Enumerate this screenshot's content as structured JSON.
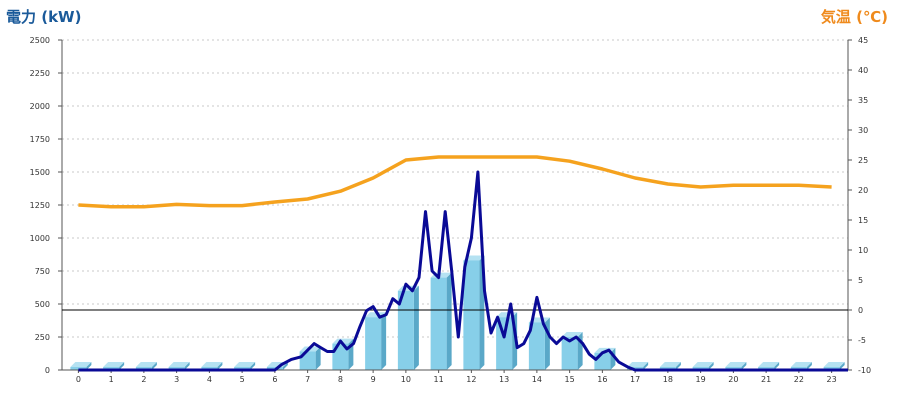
{
  "chart_data": {
    "type": "bar",
    "left_axis_label": "電力 (kW)",
    "right_axis_label": "気温 (℃)",
    "y_left_range": [
      0,
      2500
    ],
    "y_left_ticks": [
      0,
      250,
      500,
      750,
      1000,
      1250,
      1500,
      1750,
      2000,
      2250,
      2500
    ],
    "y_right_range": [
      -10,
      45
    ],
    "y_right_ticks": [
      -10,
      -5,
      0,
      5,
      10,
      15,
      20,
      25,
      30,
      35,
      40,
      45
    ],
    "x_ticks": [
      "0",
      "1",
      "2",
      "3",
      "4",
      "5",
      "6",
      "7",
      "8",
      "9",
      "10",
      "11",
      "12",
      "13",
      "14",
      "15",
      "16",
      "17",
      "18",
      "19",
      "20",
      "21",
      "22",
      "23"
    ],
    "grid": true,
    "zero_line_temp": 0,
    "colors": {
      "bar_front": "#87cfe9",
      "bar_side": "#5aa8c8",
      "bar_top": "#b5e2f2",
      "power_line": "#0a0a96",
      "temperature_line": "#f5a21e",
      "left_title": "#1a5a9a",
      "right_title": "#ef8a1c"
    },
    "bars_hourly_power_kw": [
      0,
      0,
      0,
      0,
      0,
      0,
      20,
      140,
      200,
      400,
      600,
      700,
      830,
      400,
      360,
      250,
      130,
      10,
      0,
      0,
      0,
      0,
      0,
      0
    ],
    "power_line_kw": {
      "x": [
        0,
        6,
        6.2,
        6.5,
        6.8,
        7.0,
        7.2,
        7.4,
        7.6,
        7.8,
        8.0,
        8.2,
        8.4,
        8.6,
        8.8,
        9.0,
        9.2,
        9.4,
        9.6,
        9.8,
        10.0,
        10.2,
        10.4,
        10.6,
        10.8,
        11.0,
        11.2,
        11.4,
        11.6,
        11.8,
        12.0,
        12.2,
        12.4,
        12.6,
        12.8,
        13.0,
        13.2,
        13.4,
        13.6,
        13.8,
        14.0,
        14.2,
        14.4,
        14.6,
        14.8,
        15.0,
        15.2,
        15.4,
        15.6,
        15.8,
        16.0,
        16.2,
        16.5,
        16.8,
        17.0,
        23.5
      ],
      "y": [
        0,
        0,
        40,
        80,
        100,
        150,
        200,
        170,
        140,
        140,
        220,
        160,
        200,
        330,
        450,
        480,
        400,
        420,
        540,
        500,
        650,
        600,
        700,
        1200,
        750,
        700,
        1200,
        750,
        250,
        780,
        1000,
        1500,
        600,
        280,
        400,
        250,
        500,
        170,
        200,
        300,
        550,
        350,
        250,
        200,
        250,
        220,
        250,
        200,
        120,
        80,
        130,
        150,
        60,
        20,
        0,
        0
      ]
    },
    "temperature_c": [
      17.5,
      17.2,
      17.2,
      17.6,
      17.4,
      17.4,
      18.0,
      18.5,
      19.8,
      22.0,
      25.0,
      25.5,
      25.5,
      25.5,
      25.5,
      24.8,
      23.5,
      22.0,
      21.0,
      20.5,
      20.8,
      20.8,
      20.8,
      20.5
    ]
  }
}
